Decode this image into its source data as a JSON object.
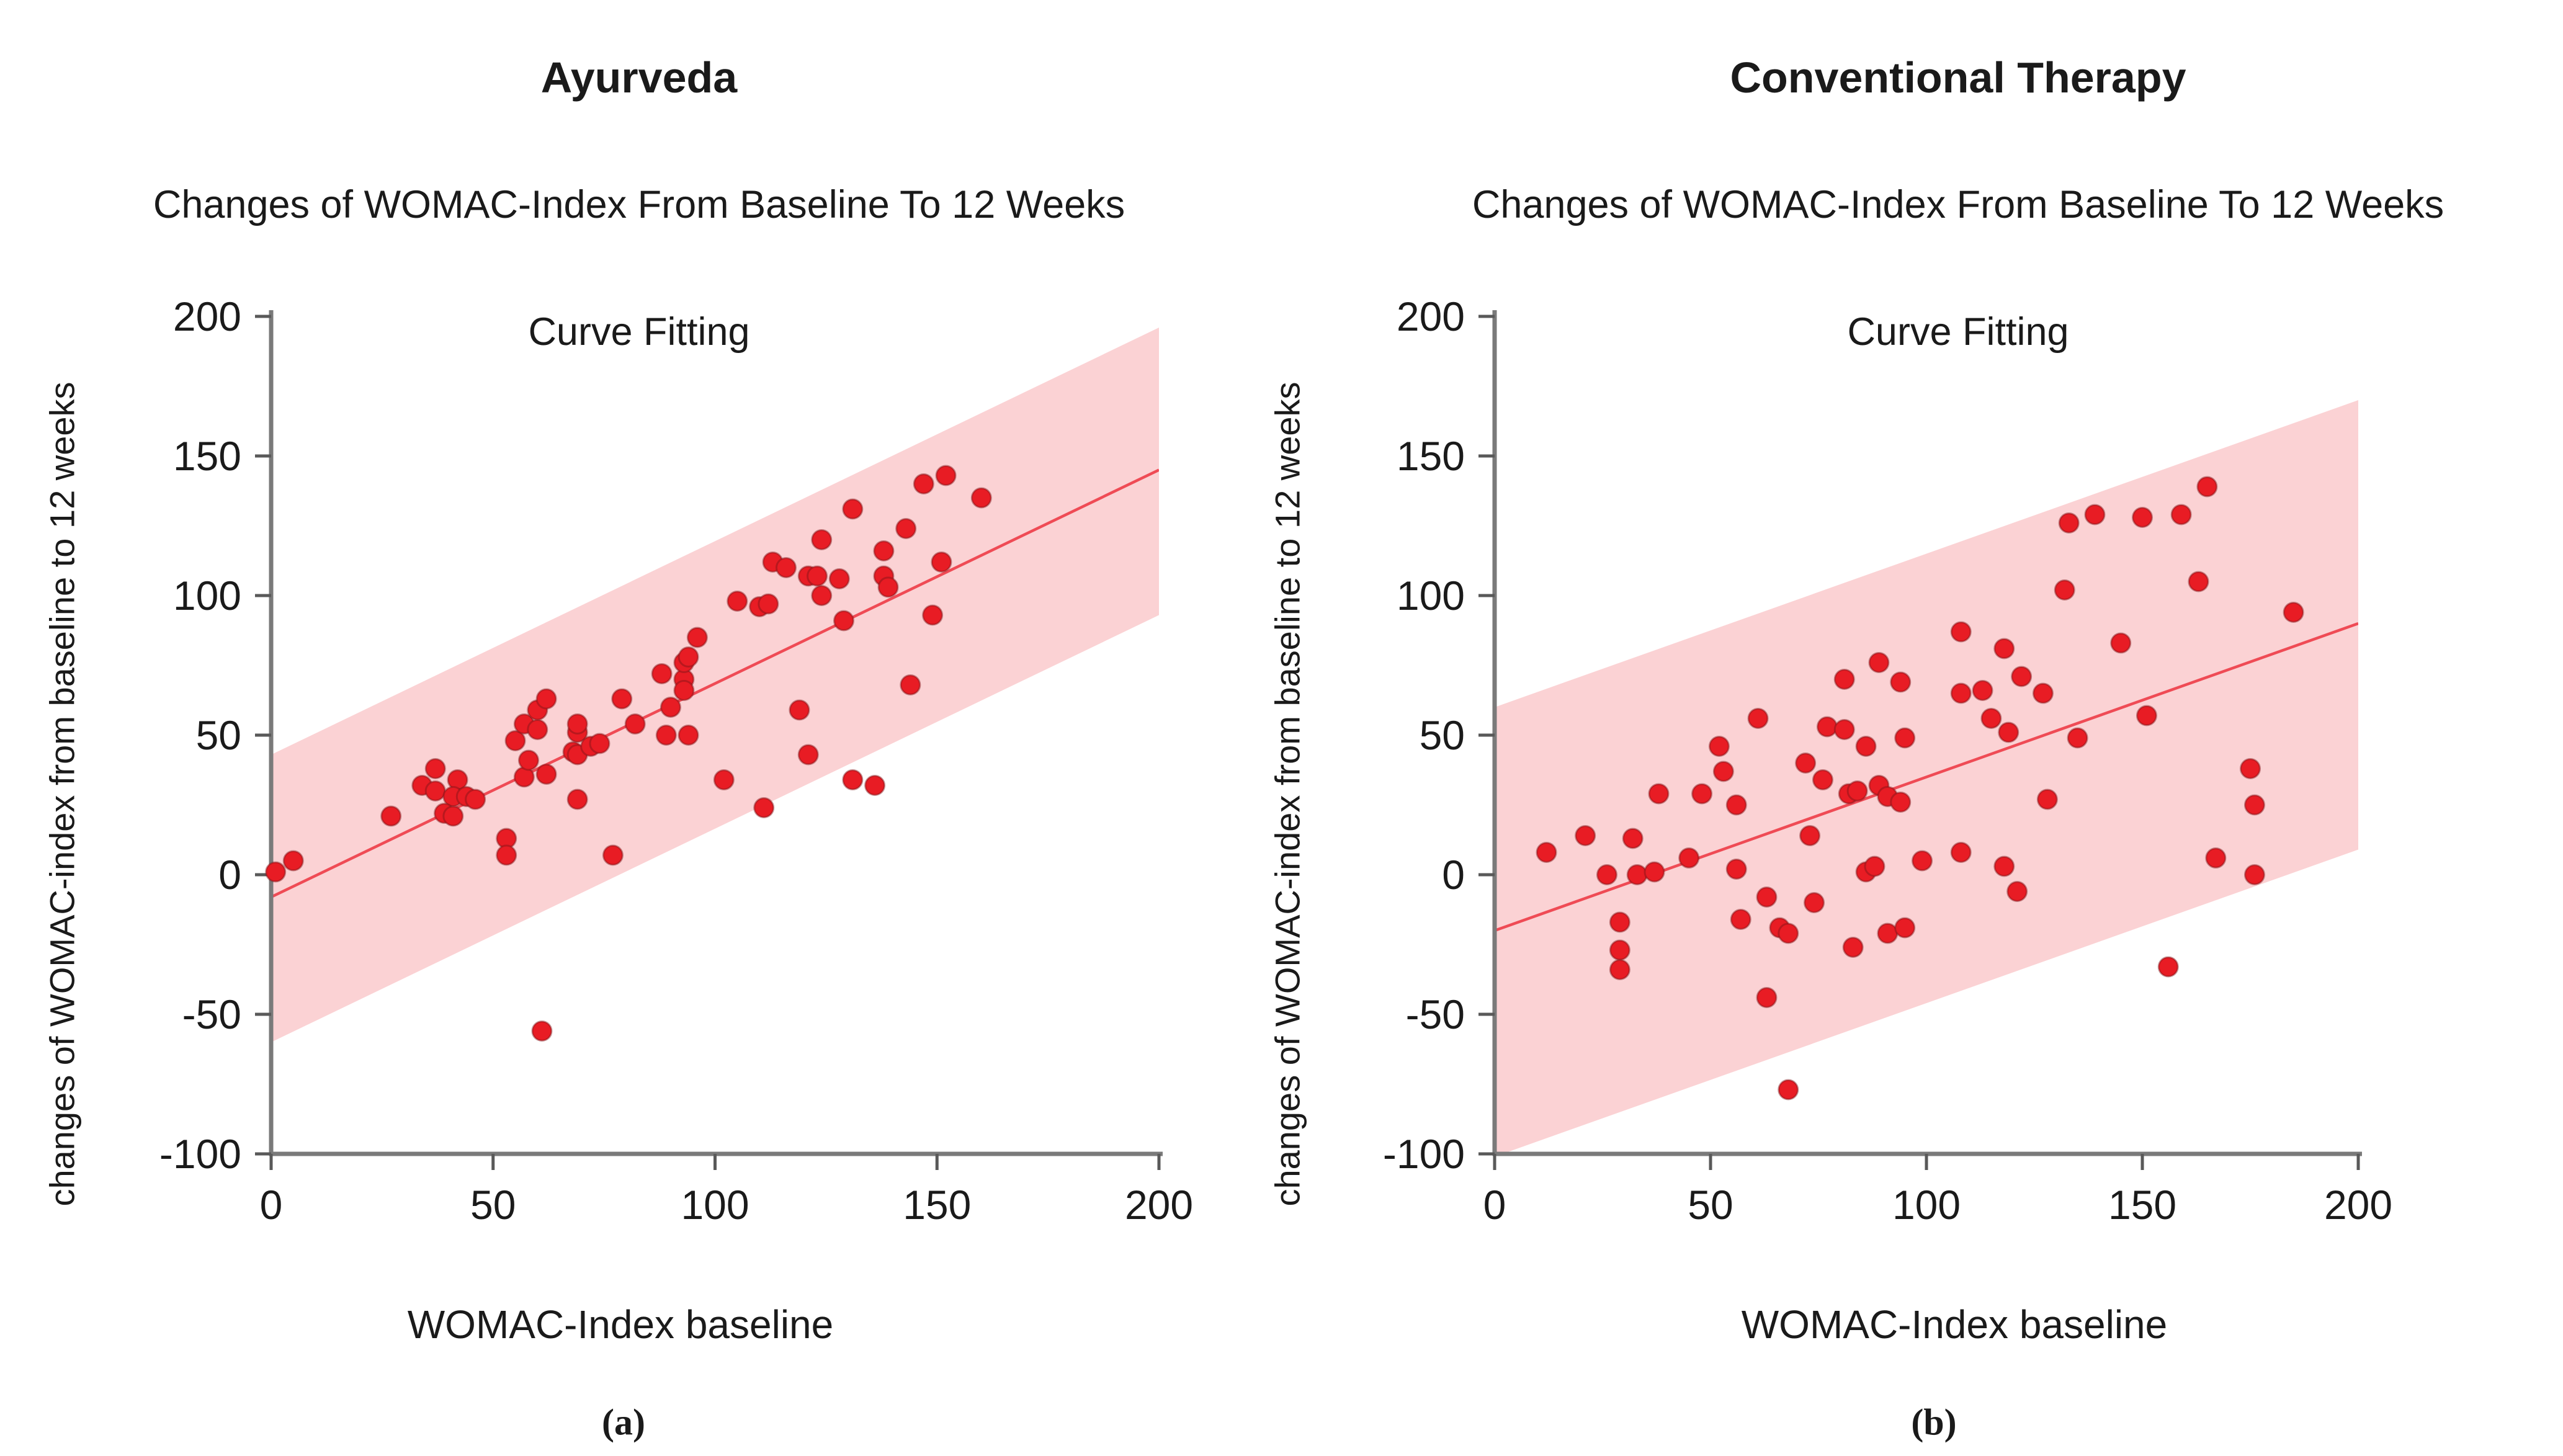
{
  "figure": {
    "background_color": "#ffffff",
    "text_color": "#1a1a1a",
    "axis_color": "#7a7a7a",
    "tick_color": "#595959"
  },
  "chart_data": [
    {
      "type": "scatter",
      "panel_label": "(a)",
      "title": "Ayurveda",
      "subtitle_line1": "Changes of WOMAC-Index From Baseline To 12 Weeks",
      "subtitle_line2": "Curve Fitting",
      "xlabel": "WOMAC-Index baseline",
      "ylabel": "changes of WOMAC-index from baseline to 12 weeks",
      "xlim": [
        0,
        200
      ],
      "ylim": [
        -100,
        200
      ],
      "xticks": [
        0,
        50,
        100,
        150,
        200
      ],
      "yticks": [
        200,
        150,
        100,
        50,
        0,
        -50,
        -100
      ],
      "grid": false,
      "legend": "none",
      "marker_color": "#e81c24",
      "marker_edge_color": "#7e1418",
      "fit_line": {
        "slope": 0.765,
        "intercept": -8,
        "color": "#ef4b55"
      },
      "confidence_band": {
        "upper_offset": 51,
        "lower_offset": 52,
        "color": "#fbd2d4"
      },
      "points": [
        [
          1,
          1
        ],
        [
          5,
          5
        ],
        [
          27,
          21
        ],
        [
          34,
          32
        ],
        [
          37,
          38
        ],
        [
          42,
          34
        ],
        [
          37,
          30
        ],
        [
          41,
          28
        ],
        [
          44,
          28
        ],
        [
          46,
          27
        ],
        [
          39,
          22
        ],
        [
          41,
          21
        ],
        [
          53,
          13
        ],
        [
          53,
          7
        ],
        [
          55,
          48
        ],
        [
          57,
          54
        ],
        [
          57,
          35
        ],
        [
          58,
          41
        ],
        [
          60,
          52
        ],
        [
          60,
          59
        ],
        [
          61,
          -56
        ],
        [
          62,
          63
        ],
        [
          62,
          36
        ],
        [
          68,
          44
        ],
        [
          69,
          43
        ],
        [
          69,
          51
        ],
        [
          69,
          54
        ],
        [
          69,
          27
        ],
        [
          72,
          46
        ],
        [
          74,
          47
        ],
        [
          77,
          7
        ],
        [
          79,
          63
        ],
        [
          82,
          54
        ],
        [
          88,
          72
        ],
        [
          89,
          50
        ],
        [
          90,
          60
        ],
        [
          93,
          70
        ],
        [
          93,
          66
        ],
        [
          93,
          76
        ],
        [
          94,
          78
        ],
        [
          94,
          50
        ],
        [
          96,
          85
        ],
        [
          102,
          34
        ],
        [
          105,
          98
        ],
        [
          110,
          96
        ],
        [
          112,
          97
        ],
        [
          111,
          24
        ],
        [
          113,
          112
        ],
        [
          116,
          110
        ],
        [
          119,
          59
        ],
        [
          121,
          43
        ],
        [
          121,
          107
        ],
        [
          123,
          107
        ],
        [
          124,
          100
        ],
        [
          124,
          120
        ],
        [
          128,
          106
        ],
        [
          129,
          91
        ],
        [
          131,
          131
        ],
        [
          131,
          34
        ],
        [
          136,
          32
        ],
        [
          138,
          116
        ],
        [
          138,
          107
        ],
        [
          139,
          103
        ],
        [
          143,
          124
        ],
        [
          144,
          68
        ],
        [
          147,
          140
        ],
        [
          149,
          93
        ],
        [
          151,
          112
        ],
        [
          152,
          143
        ],
        [
          160,
          135
        ]
      ]
    },
    {
      "type": "scatter",
      "panel_label": "(b)",
      "title": "Conventional Therapy",
      "subtitle_line1": "Changes of WOMAC-Index From Baseline To 12 Weeks",
      "subtitle_line2": "Curve Fitting",
      "xlabel": "WOMAC-Index baseline",
      "ylabel": "changes of WOMAC-index from baseline to 12 weeks",
      "xlim": [
        0,
        200
      ],
      "ylim": [
        -100,
        200
      ],
      "xticks": [
        0,
        50,
        100,
        150,
        200
      ],
      "yticks": [
        200,
        150,
        100,
        50,
        0,
        -50,
        -100
      ],
      "grid": false,
      "legend": "none",
      "marker_color": "#e81c24",
      "marker_edge_color": "#7e1418",
      "fit_line": {
        "slope": 0.55,
        "intercept": -20,
        "color": "#ef4b55"
      },
      "confidence_band": {
        "upper_offset": 80,
        "lower_offset": 81,
        "color": "#fbd2d4"
      },
      "points": [
        [
          12,
          8
        ],
        [
          21,
          14
        ],
        [
          26,
          0
        ],
        [
          29,
          -17
        ],
        [
          29,
          -27
        ],
        [
          29,
          -34
        ],
        [
          32,
          13
        ],
        [
          33,
          0
        ],
        [
          37,
          1
        ],
        [
          38,
          29
        ],
        [
          45,
          6
        ],
        [
          48,
          29
        ],
        [
          52,
          46
        ],
        [
          53,
          37
        ],
        [
          56,
          25
        ],
        [
          56,
          2
        ],
        [
          57,
          -16
        ],
        [
          61,
          56
        ],
        [
          63,
          -8
        ],
        [
          63,
          -44
        ],
        [
          66,
          -19
        ],
        [
          68,
          -21
        ],
        [
          68,
          -77
        ],
        [
          72,
          40
        ],
        [
          73,
          14
        ],
        [
          74,
          -10
        ],
        [
          76,
          34
        ],
        [
          77,
          53
        ],
        [
          81,
          52
        ],
        [
          81,
          70
        ],
        [
          82,
          29
        ],
        [
          83,
          -26
        ],
        [
          84,
          30
        ],
        [
          86,
          46
        ],
        [
          86,
          1
        ],
        [
          88,
          3
        ],
        [
          89,
          32
        ],
        [
          89,
          76
        ],
        [
          91,
          28
        ],
        [
          91,
          -21
        ],
        [
          94,
          26
        ],
        [
          94,
          69
        ],
        [
          95,
          -19
        ],
        [
          95,
          49
        ],
        [
          99,
          5
        ],
        [
          108,
          87
        ],
        [
          108,
          65
        ],
        [
          108,
          8
        ],
        [
          113,
          66
        ],
        [
          115,
          56
        ],
        [
          118,
          81
        ],
        [
          118,
          3
        ],
        [
          119,
          51
        ],
        [
          121,
          -6
        ],
        [
          122,
          71
        ],
        [
          127,
          65
        ],
        [
          128,
          27
        ],
        [
          132,
          102
        ],
        [
          133,
          126
        ],
        [
          135,
          49
        ],
        [
          139,
          129
        ],
        [
          145,
          83
        ],
        [
          150,
          128
        ],
        [
          151,
          57
        ],
        [
          156,
          -33
        ],
        [
          159,
          129
        ],
        [
          163,
          105
        ],
        [
          165,
          139
        ],
        [
          167,
          6
        ],
        [
          175,
          38
        ],
        [
          176,
          25
        ],
        [
          176,
          0
        ],
        [
          185,
          94
        ]
      ]
    }
  ]
}
